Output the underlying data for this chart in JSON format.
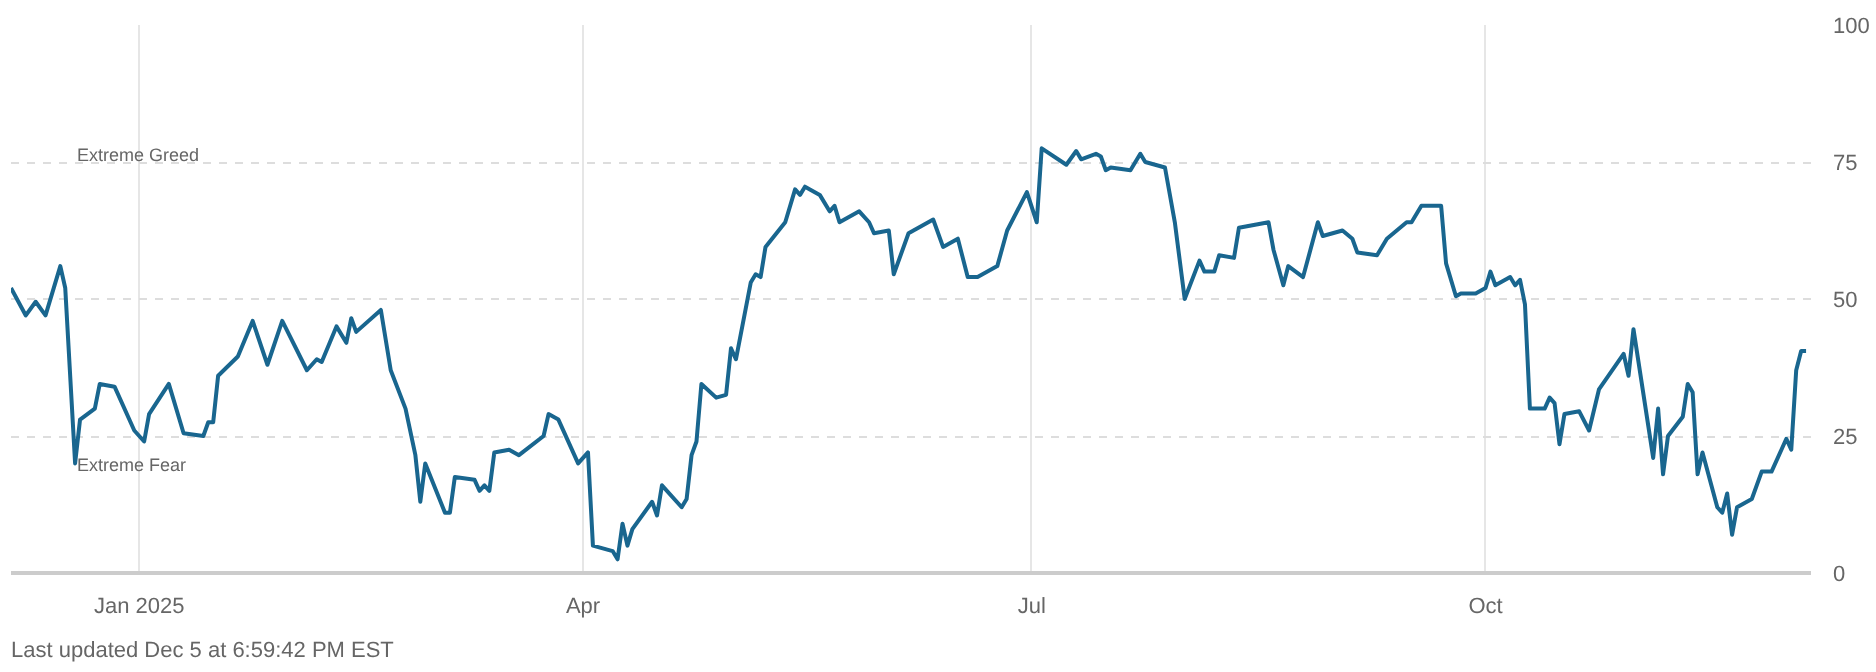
{
  "chart_data": {
    "type": "line",
    "xlim": [
      "2024-12-06",
      "2025-12-06"
    ],
    "ylim": [
      0,
      100
    ],
    "yticks": [
      0,
      25,
      50,
      75,
      100
    ],
    "xticks": [
      {
        "value": "2025-01-01",
        "label": "Jan 2025"
      },
      {
        "value": "2025-04-01",
        "label": "Apr"
      },
      {
        "value": "2025-07-01",
        "label": "Jul"
      },
      {
        "value": "2025-10-01",
        "label": "Oct"
      }
    ],
    "grid": true,
    "marker": "none",
    "line_style": "solid",
    "annotations": [
      "Extreme Greed",
      "Extreme Fear",
      "Last updated Dec 5 at 6:59:42 PM EST"
    ],
    "x": [
      "2024-12-06",
      "2024-12-09",
      "2024-12-11",
      "2024-12-13",
      "2024-12-16",
      "2024-12-17",
      "2024-12-19",
      "2024-12-20",
      "2024-12-23",
      "2024-12-24",
      "2024-12-27",
      "2024-12-31",
      "2025-01-02",
      "2025-01-03",
      "2025-01-07",
      "2025-01-10",
      "2025-01-14",
      "2025-01-15",
      "2025-01-16",
      "2025-01-17",
      "2025-01-21",
      "2025-01-24",
      "2025-01-27",
      "2025-01-30",
      "2025-02-04",
      "2025-02-06",
      "2025-02-07",
      "2025-02-10",
      "2025-02-12",
      "2025-02-13",
      "2025-02-14",
      "2025-02-19",
      "2025-02-21",
      "2025-02-24",
      "2025-02-26",
      "2025-02-27",
      "2025-02-28",
      "2025-03-04",
      "2025-03-05",
      "2025-03-06",
      "2025-03-10",
      "2025-03-11",
      "2025-03-12",
      "2025-03-13",
      "2025-03-14",
      "2025-03-17",
      "2025-03-19",
      "2025-03-24",
      "2025-03-25",
      "2025-03-27",
      "2025-03-31",
      "2025-04-02",
      "2025-04-03",
      "2025-04-07",
      "2025-04-08",
      "2025-04-09",
      "2025-04-10",
      "2025-04-11",
      "2025-04-15",
      "2025-04-16",
      "2025-04-17",
      "2025-04-21",
      "2025-04-22",
      "2025-04-23",
      "2025-04-24",
      "2025-04-25",
      "2025-04-28",
      "2025-04-30",
      "2025-05-01",
      "2025-05-02",
      "2025-05-05",
      "2025-05-06",
      "2025-05-07",
      "2025-05-08",
      "2025-05-12",
      "2025-05-14",
      "2025-05-15",
      "2025-05-16",
      "2025-05-19",
      "2025-05-21",
      "2025-05-22",
      "2025-05-23",
      "2025-05-27",
      "2025-05-29",
      "2025-05-30",
      "2025-06-02",
      "2025-06-03",
      "2025-06-06",
      "2025-06-11",
      "2025-06-13",
      "2025-06-16",
      "2025-06-18",
      "2025-06-20",
      "2025-06-24",
      "2025-06-26",
      "2025-06-30",
      "2025-07-02",
      "2025-07-03",
      "2025-07-08",
      "2025-07-10",
      "2025-07-11",
      "2025-07-14",
      "2025-07-15",
      "2025-07-16",
      "2025-07-17",
      "2025-07-21",
      "2025-07-23",
      "2025-07-24",
      "2025-07-28",
      "2025-07-30",
      "2025-08-01",
      "2025-08-04",
      "2025-08-05",
      "2025-08-07",
      "2025-08-08",
      "2025-08-11",
      "2025-08-12",
      "2025-08-18",
      "2025-08-19",
      "2025-08-21",
      "2025-08-22",
      "2025-08-25",
      "2025-08-28",
      "2025-08-29",
      "2025-09-02",
      "2025-09-04",
      "2025-09-05",
      "2025-09-09",
      "2025-09-11",
      "2025-09-15",
      "2025-09-16",
      "2025-09-18",
      "2025-09-22",
      "2025-09-23",
      "2025-09-25",
      "2025-09-26",
      "2025-09-29",
      "2025-10-01",
      "2025-10-02",
      "2025-10-03",
      "2025-10-06",
      "2025-10-07",
      "2025-10-08",
      "2025-10-09",
      "2025-10-10",
      "2025-10-13",
      "2025-10-14",
      "2025-10-15",
      "2025-10-16",
      "2025-10-17",
      "2025-10-20",
      "2025-10-22",
      "2025-10-24",
      "2025-10-29",
      "2025-10-30",
      "2025-10-31",
      "2025-11-04",
      "2025-11-05",
      "2025-11-06",
      "2025-11-07",
      "2025-11-10",
      "2025-11-11",
      "2025-11-12",
      "2025-11-13",
      "2025-11-14",
      "2025-11-17",
      "2025-11-18",
      "2025-11-19",
      "2025-11-20",
      "2025-11-21",
      "2025-11-24",
      "2025-11-26",
      "2025-11-28",
      "2025-12-01",
      "2025-12-02",
      "2025-12-03",
      "2025-12-04",
      "2025-12-05"
    ],
    "series": [
      {
        "color": "#19668f",
        "values": [
          52,
          47,
          49.5,
          47,
          56,
          52,
          20,
          28,
          30,
          34.5,
          34,
          26,
          24,
          29,
          34.5,
          25.5,
          25,
          27.5,
          27.5,
          36,
          39.5,
          46,
          38,
          46,
          37,
          39,
          38.5,
          45,
          42,
          46.5,
          44,
          48,
          37,
          30,
          21.5,
          13,
          20,
          11,
          11,
          17.5,
          17,
          15,
          16,
          15,
          22,
          22.5,
          21.5,
          25,
          29,
          28,
          20,
          22,
          5,
          4,
          2.5,
          9,
          5,
          8,
          13,
          10.5,
          16,
          12,
          13.5,
          21.5,
          24,
          34.5,
          32,
          32.5,
          41,
          39,
          53,
          54.5,
          54,
          59.5,
          64,
          70,
          69,
          70.5,
          69,
          66,
          67,
          64,
          66,
          64,
          62,
          62.5,
          54.5,
          62,
          64.5,
          59.5,
          61,
          54,
          54,
          56,
          62.5,
          69.5,
          64,
          77.5,
          74.5,
          77,
          75.5,
          76.5,
          76,
          73.5,
          74,
          73.5,
          76.5,
          75,
          74,
          64,
          50,
          57,
          55,
          55,
          58,
          57.5,
          63,
          64,
          59,
          52.5,
          56,
          54,
          64,
          61.5,
          62.5,
          61,
          58.5,
          58,
          61,
          64,
          64,
          67,
          67,
          56.5,
          50.5,
          51,
          51,
          52,
          55,
          52.5,
          54,
          52.5,
          53.5,
          49,
          30,
          30,
          32,
          31,
          23.5,
          29,
          29.5,
          26,
          33.5,
          40,
          36,
          44.5,
          21,
          30,
          18,
          25,
          28.5,
          34.5,
          33,
          18,
          22,
          12,
          11,
          14.5,
          7,
          12,
          13.5,
          18.5,
          18.5,
          24.5,
          22.5,
          37,
          40.5,
          40.5
        ]
      }
    ]
  }
}
